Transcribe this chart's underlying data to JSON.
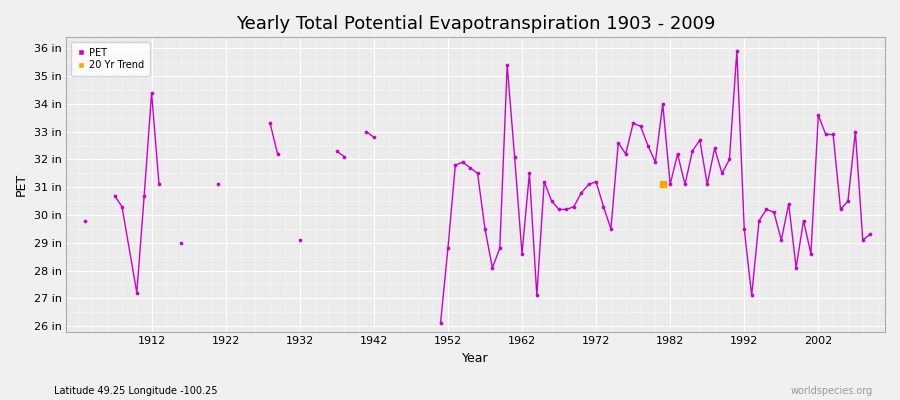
{
  "title": "Yearly Total Potential Evapotranspiration 1903 - 2009",
  "xlabel": "Year",
  "ylabel": "PET",
  "lat_lon_label": "Latitude 49.25 Longitude -100.25",
  "watermark": "worldspecies.org",
  "ylim": [
    25.8,
    36.4
  ],
  "xlim": [
    1900.5,
    2011
  ],
  "ytick_labels": [
    "26 in",
    "27 in",
    "28 in",
    "29 in",
    "30 in",
    "31 in",
    "32 in",
    "33 in",
    "34 in",
    "35 in",
    "36 in"
  ],
  "ytick_values": [
    26,
    27,
    28,
    29,
    30,
    31,
    32,
    33,
    34,
    35,
    36
  ],
  "xtick_values": [
    1912,
    1922,
    1932,
    1942,
    1952,
    1962,
    1972,
    1982,
    1992,
    2002
  ],
  "pet_color": "#CC00CC",
  "trend_color": "#FFA500",
  "bg_color": "#F0F0F0",
  "plot_bg_color": "#EBEBEB",
  "title_fontsize": 13,
  "years": [
    1903,
    1907,
    1908,
    1910,
    1911,
    1912,
    1913,
    1916,
    1921,
    1928,
    1929,
    1932,
    1937,
    1938,
    1941,
    1942,
    1951,
    1952,
    1953,
    1954,
    1955,
    1956,
    1957,
    1958,
    1959,
    1960,
    1961,
    1962,
    1963,
    1964,
    1965,
    1966,
    1967,
    1968,
    1969,
    1970,
    1971,
    1972,
    1973,
    1974,
    1975,
    1976,
    1977,
    1978,
    1979,
    1980,
    1981,
    1982,
    1983,
    1984,
    1985,
    1986,
    1987,
    1988,
    1989,
    1990,
    1991,
    1992,
    1993,
    1994,
    1995,
    1996,
    1997,
    1998,
    1999,
    2000,
    2001,
    2002,
    2003,
    2004,
    2005,
    2006,
    2007,
    2008,
    2009
  ],
  "pet_values": [
    29.8,
    30.7,
    30.3,
    27.2,
    30.7,
    34.4,
    31.1,
    29.0,
    31.1,
    33.3,
    32.2,
    29.1,
    32.3,
    32.1,
    33.0,
    32.8,
    26.1,
    28.8,
    31.8,
    31.9,
    31.7,
    31.5,
    29.5,
    28.1,
    28.8,
    35.4,
    32.1,
    28.6,
    31.5,
    27.1,
    31.2,
    30.5,
    30.2,
    30.2,
    30.3,
    30.8,
    31.1,
    31.2,
    30.3,
    29.5,
    32.6,
    32.2,
    33.3,
    33.2,
    32.5,
    31.9,
    34.0,
    31.1,
    32.2,
    31.1,
    32.3,
    32.7,
    31.1,
    32.4,
    31.5,
    32.0,
    35.9,
    29.5,
    27.1,
    29.8,
    30.2,
    30.1,
    29.1,
    30.4,
    28.1,
    29.8,
    28.6,
    33.6,
    32.9,
    32.9,
    30.2,
    30.5,
    33.0,
    29.1,
    29.3
  ],
  "trend_year": 1981,
  "trend_value": 31.1
}
